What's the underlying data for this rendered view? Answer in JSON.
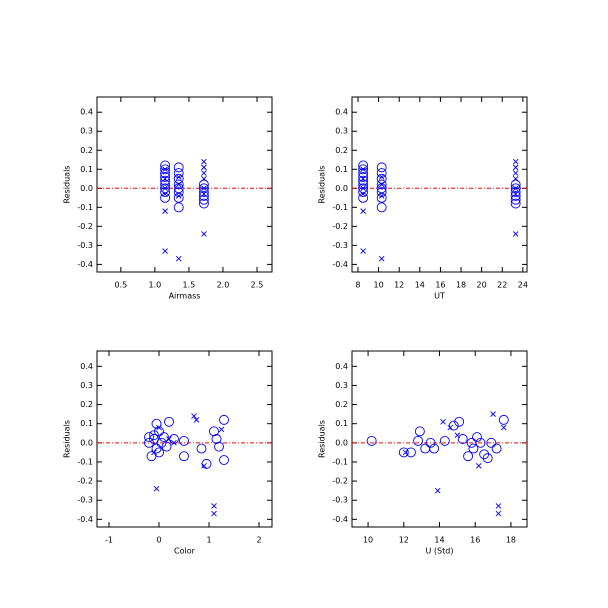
{
  "chart_data": [
    {
      "type": "scatter",
      "xlabel": "Airmass",
      "ylabel": "Residuals",
      "xlim": [
        0.15,
        2.72
      ],
      "ylim": [
        -0.44,
        0.48
      ],
      "xticks": [
        0.5,
        {
          "value": 1,
          "label": "1.0"
        },
        1.5,
        {
          "value": 2,
          "label": "2.0"
        },
        2.5
      ],
      "yticks": [
        0.4,
        0.3,
        0.2,
        0.1,
        {
          "value": 0,
          "label": "0.0"
        },
        -0.1,
        -0.2,
        -0.3,
        -0.4
      ],
      "hline": {
        "y": 0,
        "color": "#ff0000"
      },
      "series": [
        {
          "marker": "circle",
          "color": "#0000ff",
          "x": [
            1.15,
            1.15,
            1.15,
            1.15,
            1.15,
            1.15,
            1.15,
            1.15,
            1.15,
            1.35,
            1.35,
            1.35,
            1.35,
            1.35,
            1.35,
            1.35,
            1.35,
            1.72,
            1.72,
            1.72,
            1.72,
            1.72,
            1.72
          ],
          "values": [
            0.12,
            0.1,
            0.08,
            0.06,
            0.04,
            0.02,
            0.0,
            -0.02,
            -0.05,
            0.11,
            0.08,
            0.05,
            0.02,
            0.0,
            -0.02,
            -0.05,
            -0.1,
            0.02,
            0.0,
            -0.02,
            -0.04,
            -0.06,
            -0.08
          ]
        },
        {
          "marker": "cross",
          "color": "#0000ff",
          "x": [
            1.15,
            1.15,
            1.15,
            1.15,
            1.15,
            1.15,
            1.35,
            1.35,
            1.35,
            1.35,
            1.72,
            1.72,
            1.72,
            1.72,
            1.72,
            1.72,
            1.72
          ],
          "values": [
            0.1,
            0.05,
            0.0,
            -0.03,
            -0.12,
            -0.33,
            0.06,
            0.02,
            -0.04,
            -0.37,
            0.14,
            0.11,
            0.08,
            0.05,
            0.0,
            -0.03,
            -0.24
          ]
        }
      ]
    },
    {
      "type": "scatter",
      "xlabel": "UT",
      "ylabel": "Residuals",
      "xlim": [
        7.42,
        24.4
      ],
      "ylim": [
        -0.44,
        0.48
      ],
      "xticks": [
        8,
        10,
        12,
        14,
        16,
        18,
        20,
        22,
        24
      ],
      "yticks": [
        0.4,
        0.3,
        0.2,
        0.1,
        {
          "value": 0,
          "label": "0.0"
        },
        -0.1,
        -0.2,
        -0.3,
        -0.4
      ],
      "hline": {
        "y": 0,
        "color": "#ff0000"
      },
      "series": [
        {
          "marker": "circle",
          "color": "#0000ff",
          "x": [
            8.5,
            8.5,
            8.5,
            8.5,
            8.5,
            8.5,
            8.5,
            8.5,
            8.5,
            10.3,
            10.3,
            10.3,
            10.3,
            10.3,
            10.3,
            10.3,
            10.3,
            23.3,
            23.3,
            23.3,
            23.3,
            23.3,
            23.3
          ],
          "values": [
            0.12,
            0.1,
            0.08,
            0.06,
            0.04,
            0.02,
            0.0,
            -0.02,
            -0.05,
            0.11,
            0.08,
            0.05,
            0.02,
            0.0,
            -0.02,
            -0.05,
            -0.1,
            0.02,
            0.0,
            -0.02,
            -0.04,
            -0.06,
            -0.08
          ]
        },
        {
          "marker": "cross",
          "color": "#0000ff",
          "x": [
            8.5,
            8.5,
            8.5,
            8.5,
            8.5,
            8.5,
            10.3,
            10.3,
            10.3,
            10.3,
            23.3,
            23.3,
            23.3,
            23.3,
            23.3,
            23.3,
            23.3
          ],
          "values": [
            0.1,
            0.05,
            0.0,
            -0.03,
            -0.12,
            -0.33,
            0.06,
            0.02,
            -0.04,
            -0.37,
            0.14,
            0.11,
            0.08,
            0.05,
            0.0,
            -0.03,
            -0.24
          ]
        }
      ]
    },
    {
      "type": "scatter",
      "xlabel": "Color",
      "ylabel": "Residuals",
      "xlim": [
        -1.24,
        2.26
      ],
      "ylim": [
        -0.44,
        0.48
      ],
      "xticks": [
        -1,
        0,
        1,
        2
      ],
      "yticks": [
        0.4,
        0.3,
        0.2,
        0.1,
        {
          "value": 0,
          "label": "0.0"
        },
        -0.1,
        -0.2,
        -0.3,
        -0.4
      ],
      "hline": {
        "y": 0,
        "color": "#ff0000"
      },
      "series": [
        {
          "marker": "circle",
          "color": "#0000ff",
          "x": [
            -0.2,
            -0.15,
            -0.1,
            -0.05,
            0,
            0.05,
            -0.05,
            0.1,
            0.2,
            0.3,
            0.5,
            0.5,
            0.85,
            0.95,
            1.1,
            1.15,
            1.2,
            1.3,
            1.3,
            0,
            -0.1,
            0.15,
            -0.2
          ],
          "values": [
            0.0,
            -0.07,
            0.02,
            0.1,
            0.06,
            0.0,
            -0.03,
            0.03,
            0.11,
            0.02,
            0.01,
            -0.07,
            -0.03,
            -0.11,
            0.06,
            0.02,
            -0.02,
            0.12,
            -0.09,
            -0.05,
            0.04,
            -0.02,
            0.03
          ]
        },
        {
          "marker": "cross",
          "color": "#0000ff",
          "x": [
            0.7,
            0.75,
            0.9,
            1.1,
            1.1,
            -0.05,
            0,
            -0.1,
            0.2,
            1.25,
            0.3
          ],
          "values": [
            0.14,
            0.12,
            -0.12,
            -0.33,
            -0.37,
            -0.24,
            0.08,
            -0.05,
            0.02,
            0.07,
            0.0
          ]
        }
      ]
    },
    {
      "type": "scatter",
      "xlabel": "U (Std)",
      "ylabel": "Residuals",
      "xlim": [
        9.1,
        18.9
      ],
      "ylim": [
        -0.44,
        0.48
      ],
      "xticks": [
        10,
        12,
        14,
        16,
        18
      ],
      "yticks": [
        0.4,
        0.3,
        0.2,
        0.1,
        {
          "value": 0,
          "label": "0.0"
        },
        -0.1,
        -0.2,
        -0.3,
        -0.4
      ],
      "hline": {
        "y": 0,
        "color": "#ff0000"
      },
      "series": [
        {
          "marker": "circle",
          "color": "#0000ff",
          "x": [
            10.2,
            12,
            12.4,
            12.8,
            12.9,
            13.2,
            13.5,
            14.3,
            14.8,
            15.1,
            15.3,
            15.6,
            15.9,
            16.1,
            16.3,
            16.5,
            16.7,
            17.2,
            17.6,
            15.8,
            13.7,
            16.9
          ],
          "values": [
            0.01,
            -0.05,
            -0.05,
            0.01,
            0.06,
            -0.03,
            0.0,
            0.01,
            0.09,
            0.11,
            0.02,
            -0.07,
            -0.03,
            0.03,
            0.0,
            -0.06,
            -0.08,
            -0.03,
            0.12,
            0.0,
            -0.03,
            0.0
          ]
        },
        {
          "marker": "cross",
          "color": "#0000ff",
          "x": [
            13.9,
            14.2,
            14.6,
            17.0,
            17.3,
            17.3,
            17.6,
            16.2,
            15.0,
            12.1
          ],
          "values": [
            -0.25,
            0.11,
            0.08,
            0.15,
            -0.33,
            -0.37,
            0.08,
            -0.12,
            0.04,
            -0.05
          ]
        }
      ]
    }
  ]
}
